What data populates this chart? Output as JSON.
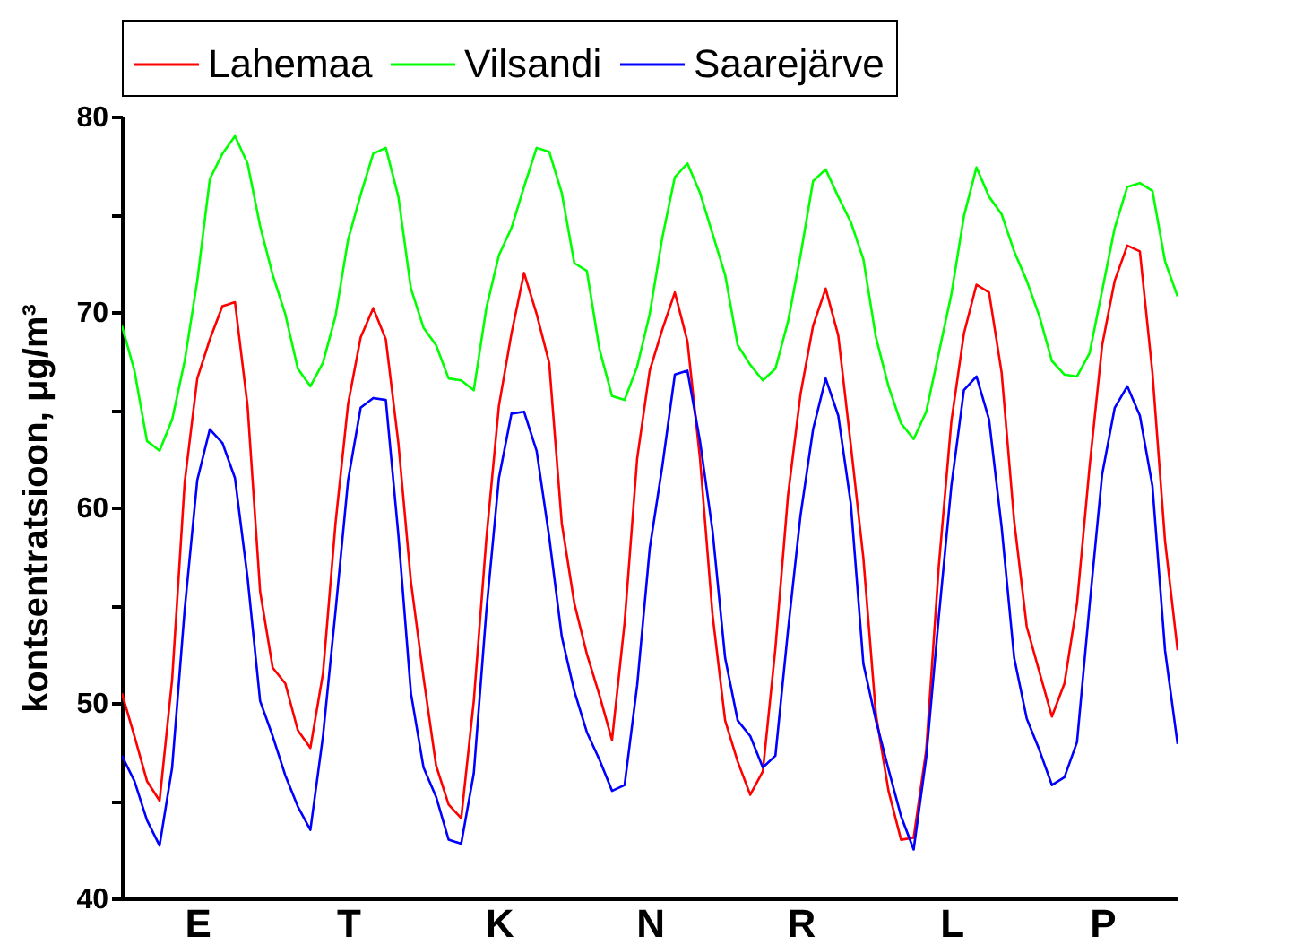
{
  "chart_data": {
    "type": "line",
    "ylabel": "kontsentratsioon, μg/m³",
    "legend": "top",
    "grid": false,
    "ylim": [
      40,
      80
    ],
    "yticks": [
      40,
      {
        "value": 45,
        "label": null
      },
      50,
      {
        "value": 55,
        "label": null
      },
      60,
      {
        "value": 65,
        "label": null
      },
      70,
      {
        "value": 75,
        "label": null
      },
      80
    ],
    "categories": [
      null,
      null,
      null,
      null,
      null,
      null,
      "E",
      null,
      null,
      null,
      null,
      null,
      null,
      null,
      null,
      null,
      null,
      null,
      "T",
      null,
      null,
      null,
      null,
      null,
      null,
      null,
      null,
      null,
      null,
      null,
      "K",
      null,
      null,
      null,
      null,
      null,
      null,
      null,
      null,
      null,
      null,
      null,
      "N",
      null,
      null,
      null,
      null,
      null,
      null,
      null,
      null,
      null,
      null,
      null,
      "R",
      null,
      null,
      null,
      null,
      null,
      null,
      null,
      null,
      null,
      null,
      null,
      "L",
      null,
      null,
      null,
      null,
      null,
      null,
      null,
      null,
      null,
      null,
      null,
      "P",
      null,
      null,
      null,
      null,
      null,
      null
    ],
    "series": [
      {
        "name": "Lahemaa",
        "color": "#ff0000",
        "values": [
          50.5,
          48.3,
          46.0,
          45.0,
          51.2,
          61.3,
          66.6,
          68.6,
          70.3,
          70.5,
          65.2,
          55.7,
          51.8,
          51.0,
          48.6,
          47.7,
          51.5,
          59.2,
          65.3,
          68.7,
          70.2,
          68.6,
          63.3,
          56.2,
          51.3,
          46.8,
          44.8,
          44.1,
          50.1,
          58.4,
          65.2,
          68.9,
          72.0,
          69.9,
          67.4,
          59.2,
          55.1,
          52.5,
          50.4,
          48.1,
          54.1,
          62.5,
          67.0,
          69.1,
          71.0,
          68.5,
          62.5,
          54.5,
          49.1,
          47.0,
          45.3,
          46.5,
          52.8,
          60.6,
          65.8,
          69.3,
          71.2,
          68.8,
          63.2,
          57.4,
          49.4,
          45.5,
          43.0,
          43.1,
          47.6,
          57.0,
          64.4,
          68.9,
          71.4,
          71.0,
          66.9,
          59.3,
          53.9,
          51.6,
          49.3,
          51.0,
          55.1,
          62.1,
          68.3,
          71.6,
          73.4,
          73.1,
          66.9,
          58.3,
          52.7
        ]
      },
      {
        "name": "Vilsandi",
        "color": "#00ff00",
        "values": [
          69.3,
          67.0,
          63.4,
          62.9,
          64.5,
          67.5,
          71.6,
          76.8,
          78.1,
          79.0,
          77.6,
          74.4,
          71.9,
          69.9,
          67.1,
          66.2,
          67.4,
          69.8,
          73.7,
          76.0,
          78.1,
          78.4,
          75.9,
          71.2,
          69.2,
          68.3,
          66.6,
          66.5,
          66.0,
          70.2,
          72.9,
          74.3,
          76.4,
          78.4,
          78.2,
          76.1,
          72.5,
          72.1,
          68.1,
          65.7,
          65.5,
          67.2,
          69.9,
          73.8,
          76.9,
          77.6,
          76.1,
          74.0,
          71.9,
          68.3,
          67.3,
          66.5,
          67.1,
          69.5,
          72.9,
          76.7,
          77.3,
          75.9,
          74.6,
          72.7,
          68.7,
          66.2,
          64.3,
          63.5,
          64.9,
          67.9,
          70.9,
          74.9,
          77.4,
          75.9,
          75.0,
          73.1,
          71.6,
          69.8,
          67.5,
          66.8,
          66.7,
          67.9,
          71.1,
          74.3,
          76.4,
          76.6,
          76.2,
          72.6,
          70.8
        ]
      },
      {
        "name": "Saarejärve",
        "color": "#0000ff",
        "values": [
          47.3,
          46.0,
          44.0,
          42.7,
          46.7,
          54.8,
          61.4,
          64.0,
          63.3,
          61.5,
          56.4,
          50.1,
          48.3,
          46.3,
          44.7,
          43.5,
          48.3,
          54.7,
          61.4,
          65.1,
          65.6,
          65.5,
          58.6,
          50.5,
          46.7,
          45.2,
          43.0,
          42.8,
          46.4,
          54.7,
          61.5,
          64.8,
          64.9,
          62.9,
          58.5,
          53.4,
          50.6,
          48.5,
          47.1,
          45.5,
          45.8,
          50.9,
          57.9,
          62.1,
          66.8,
          67.0,
          63.4,
          58.8,
          52.3,
          49.1,
          48.3,
          46.7,
          47.3,
          53.7,
          59.6,
          64.0,
          66.6,
          64.7,
          60.2,
          52.0,
          49.1,
          46.6,
          44.2,
          42.5,
          47.2,
          54.4,
          61.1,
          66.0,
          66.7,
          64.5,
          59.0,
          52.3,
          49.2,
          47.6,
          45.8,
          46.2,
          48.0,
          55.0,
          61.7,
          65.1,
          66.2,
          64.7,
          61.1,
          52.7,
          47.9
        ]
      }
    ]
  }
}
